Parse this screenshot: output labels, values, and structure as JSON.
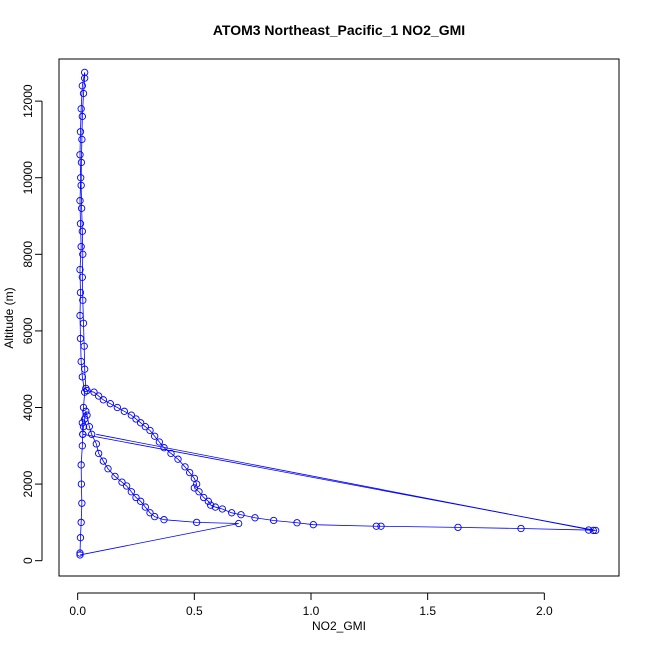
{
  "chart_data": {
    "type": "scatter",
    "title": "ATOM3 Northeast_Pacific_1 NO2_GMI",
    "xlabel": "NO2_GMI",
    "ylabel": "Altitude (m)",
    "xlim": [
      -0.08,
      2.32
    ],
    "ylim": [
      -400,
      13100
    ],
    "xticks": [
      0.0,
      0.5,
      1.0,
      1.5,
      2.0
    ],
    "xtick_labels": [
      "0.0",
      "0.5",
      "1.0",
      "1.5",
      "2.0"
    ],
    "yticks": [
      0,
      2000,
      4000,
      6000,
      8000,
      10000,
      12000
    ],
    "ytick_labels": [
      "0",
      "2000",
      "4000",
      "6000",
      "8000",
      "10000",
      "12000"
    ],
    "grid": false,
    "color": "#0000ff",
    "marker": "open-circle",
    "series": [
      {
        "name": "",
        "points": [
          [
            0.01,
            200
          ],
          [
            0.012,
            600
          ],
          [
            0.015,
            1000
          ],
          [
            0.018,
            1500
          ],
          [
            0.016,
            2000
          ],
          [
            0.015,
            2500
          ],
          [
            0.02,
            3000
          ],
          [
            0.022,
            3300
          ],
          [
            0.02,
            3600
          ],
          [
            0.025,
            4000
          ],
          [
            0.03,
            4400
          ],
          [
            0.02,
            4800
          ],
          [
            0.015,
            5200
          ],
          [
            0.012,
            5800
          ],
          [
            0.01,
            6400
          ],
          [
            0.012,
            7000
          ],
          [
            0.01,
            7600
          ],
          [
            0.015,
            8200
          ],
          [
            0.012,
            8800
          ],
          [
            0.01,
            9400
          ],
          [
            0.013,
            10000
          ],
          [
            0.01,
            10600
          ],
          [
            0.012,
            11200
          ],
          [
            0.015,
            11800
          ],
          [
            0.02,
            12400
          ],
          [
            0.03,
            12750
          ],
          [
            0.03,
            12600
          ],
          [
            0.025,
            12200
          ],
          [
            0.02,
            11600
          ],
          [
            0.018,
            11000
          ],
          [
            0.016,
            10400
          ],
          [
            0.015,
            9800
          ],
          [
            0.017,
            9200
          ],
          [
            0.02,
            8600
          ],
          [
            0.022,
            8000
          ],
          [
            0.02,
            7400
          ],
          [
            0.022,
            6800
          ],
          [
            0.025,
            6200
          ],
          [
            0.028,
            5600
          ],
          [
            0.03,
            5000
          ],
          [
            0.035,
            4500
          ],
          [
            0.04,
            4440
          ],
          [
            0.07,
            4400
          ],
          [
            0.09,
            4300
          ],
          [
            0.11,
            4200
          ],
          [
            0.14,
            4100
          ],
          [
            0.17,
            4000
          ],
          [
            0.2,
            3900
          ],
          [
            0.23,
            3800
          ],
          [
            0.25,
            3700
          ],
          [
            0.27,
            3600
          ],
          [
            0.29,
            3500
          ],
          [
            0.31,
            3400
          ],
          [
            0.33,
            3250
          ],
          [
            0.35,
            3100
          ],
          [
            0.37,
            2950
          ],
          [
            0.4,
            2800
          ],
          [
            0.43,
            2650
          ],
          [
            0.46,
            2450
          ],
          [
            0.48,
            2300
          ],
          [
            0.5,
            2150
          ],
          [
            0.51,
            2000
          ],
          [
            0.5,
            1900
          ],
          [
            0.52,
            1800
          ],
          [
            0.54,
            1650
          ],
          [
            0.56,
            1550
          ],
          [
            0.57,
            1450
          ],
          [
            0.59,
            1400
          ],
          [
            0.62,
            1350
          ],
          [
            0.66,
            1250
          ],
          [
            0.7,
            1200
          ],
          [
            0.76,
            1120
          ],
          [
            0.84,
            1050
          ],
          [
            0.94,
            990
          ],
          [
            1.01,
            940
          ],
          [
            1.28,
            900
          ],
          [
            1.3,
            900
          ],
          [
            1.63,
            870
          ],
          [
            1.9,
            840
          ],
          [
            2.19,
            800
          ],
          [
            2.21,
            790
          ],
          [
            2.22,
            790
          ],
          [
            0.022,
            3300
          ],
          [
            0.025,
            3500
          ],
          [
            0.03,
            3700
          ],
          [
            0.035,
            3900
          ],
          [
            0.04,
            3800
          ],
          [
            0.05,
            3500
          ],
          [
            0.06,
            3300
          ],
          [
            0.08,
            3050
          ],
          [
            0.09,
            2800
          ],
          [
            0.11,
            2600
          ],
          [
            0.13,
            2400
          ],
          [
            0.16,
            2200
          ],
          [
            0.19,
            2050
          ],
          [
            0.21,
            1950
          ],
          [
            0.23,
            1800
          ],
          [
            0.25,
            1650
          ],
          [
            0.27,
            1550
          ],
          [
            0.29,
            1400
          ],
          [
            0.31,
            1250
          ],
          [
            0.33,
            1150
          ],
          [
            0.37,
            1070
          ],
          [
            0.51,
            1000
          ],
          [
            0.69,
            970
          ],
          [
            0.01,
            150
          ]
        ]
      }
    ],
    "connector_line": {
      "from": [
        0.08,
        3300
      ],
      "to": [
        2.2,
        800
      ]
    }
  }
}
